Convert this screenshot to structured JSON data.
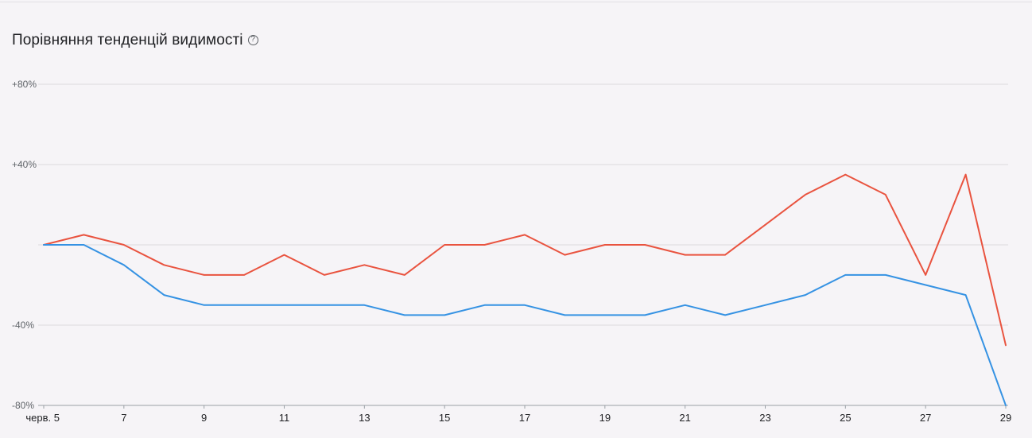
{
  "header": {
    "title": "Порівняння тенденцій видимості",
    "help_icon": "help-circle-icon"
  },
  "colors": {
    "series_red": "#e9533f",
    "series_blue": "#3592e3",
    "grid": "#dcdadd"
  },
  "chart_data": {
    "type": "line",
    "title": "Порівняння тенденцій видимості",
    "xlabel": "",
    "ylabel": "",
    "ylim": [
      -80,
      80
    ],
    "y_ticks": [
      80,
      40,
      0,
      -40,
      -80
    ],
    "y_tick_labels": [
      "+80%",
      "+40%",
      "",
      "-40%",
      "-80%"
    ],
    "x_tick_labels": [
      "черв. 5",
      "7",
      "9",
      "11",
      "13",
      "15",
      "17",
      "19",
      "21",
      "23",
      "25",
      "27",
      "29"
    ],
    "x": [
      5,
      6,
      7,
      8,
      9,
      10,
      11,
      12,
      13,
      14,
      15,
      16,
      17,
      18,
      19,
      20,
      21,
      22,
      23,
      24,
      25,
      26,
      27,
      28,
      29
    ],
    "series": [
      {
        "color": "#e9533f",
        "values": [
          0,
          5,
          0,
          -10,
          -15,
          -15,
          -5,
          -15,
          -10,
          -15,
          0,
          0,
          5,
          -5,
          0,
          0,
          -5,
          -5,
          10,
          25,
          35,
          25,
          -15,
          35,
          -50
        ]
      },
      {
        "color": "#3592e3",
        "values": [
          0,
          0,
          -10,
          -25,
          -30,
          -30,
          -30,
          -30,
          -30,
          -35,
          -35,
          -30,
          -30,
          -35,
          -35,
          -35,
          -30,
          -35,
          -30,
          -25,
          -15,
          -15,
          -20,
          -25,
          -80
        ]
      }
    ],
    "grid": true,
    "legend": "none"
  }
}
